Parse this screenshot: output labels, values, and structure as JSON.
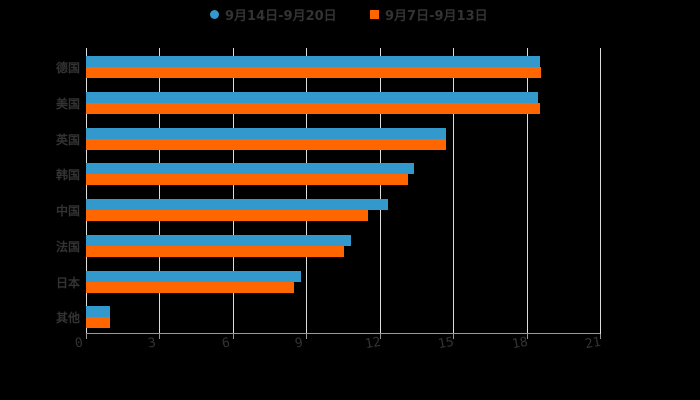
{
  "chart_data": {
    "type": "bar",
    "orientation": "horizontal",
    "title": "",
    "xlabel": "",
    "ylabel": "",
    "categories": [
      "德国",
      "美国",
      "英国",
      "韩国",
      "中国",
      "法国",
      "日本",
      "其他"
    ],
    "series": [
      {
        "name": "9月14日-9月20日",
        "color": "#3399cc",
        "values": [
          18.55,
          18.46,
          14.7,
          13.4,
          12.34,
          10.83,
          8.77,
          0.97
        ]
      },
      {
        "name": "9月7日-9月13日",
        "color": "#ff6600",
        "values": [
          18.6,
          18.55,
          14.7,
          13.15,
          11.52,
          10.54,
          8.48,
          0.97
        ]
      }
    ],
    "xlim": [
      0,
      21
    ],
    "xticks": [
      "0",
      "3",
      "6",
      "9",
      "12",
      "15",
      "18",
      "21"
    ],
    "grid": true,
    "legend_position": "top"
  },
  "legend": {
    "items": [
      {
        "label": "9月14日-9月20日",
        "color": "#3399cc",
        "shape": "circle"
      },
      {
        "label": "9月7日-9月13日",
        "color": "#ff6600",
        "shape": "square"
      }
    ]
  }
}
